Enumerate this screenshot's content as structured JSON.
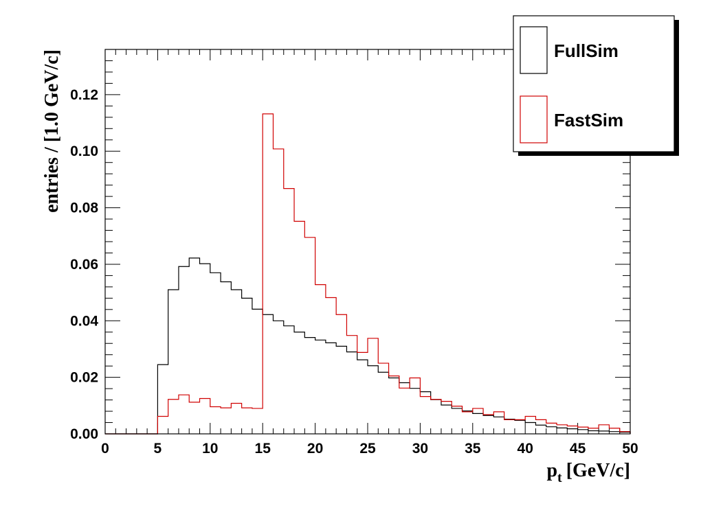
{
  "chart_data": {
    "type": "histogram",
    "title": "",
    "xlabel_main": "p",
    "xlabel_sub": "t",
    "xlabel_unit": "[GeV/c]",
    "ylabel": "entries / [1.0 GeV/c]",
    "xlim": [
      0,
      50
    ],
    "ylim": [
      0,
      0.136
    ],
    "grid": false,
    "legend_position": "top-right",
    "bin_width": 1.0,
    "x_ticks": [
      0,
      5,
      10,
      15,
      20,
      25,
      30,
      35,
      40,
      45,
      50
    ],
    "x_tick_labels": [
      "0",
      "5",
      "10",
      "15",
      "20",
      "25",
      "30",
      "35",
      "40",
      "45",
      "50"
    ],
    "y_ticks": [
      0,
      0.02,
      0.04,
      0.06,
      0.08,
      0.1,
      0.12
    ],
    "y_tick_labels": [
      "0.00",
      "0.02",
      "0.04",
      "0.06",
      "0.08",
      "0.10",
      "0.12"
    ],
    "series": [
      {
        "name": "FullSim",
        "color": "#000000",
        "values": [
          0,
          0,
          0,
          0,
          0,
          0.0245,
          0.051,
          0.0592,
          0.0622,
          0.0602,
          0.057,
          0.0538,
          0.051,
          0.048,
          0.0441,
          0.0422,
          0.04,
          0.0382,
          0.036,
          0.0341,
          0.0332,
          0.0322,
          0.031,
          0.029,
          0.0262,
          0.0241,
          0.0218,
          0.0198,
          0.0181,
          0.0161,
          0.0149,
          0.0121,
          0.0102,
          0.009,
          0.0081,
          0.0072,
          0.0065,
          0.006,
          0.0052,
          0.0048,
          0.004,
          0.0031,
          0.0025,
          0.0021,
          0.0018,
          0.0015,
          0.0011,
          0.001,
          0.0008,
          0.0006
        ]
      },
      {
        "name": "FastSim",
        "color": "#d00000",
        "values": [
          0,
          0,
          0,
          0,
          0,
          0.0062,
          0.0122,
          0.0138,
          0.0112,
          0.0125,
          0.0096,
          0.0092,
          0.0108,
          0.0092,
          0.009,
          0.1132,
          0.1008,
          0.0868,
          0.0752,
          0.0695,
          0.0528,
          0.0482,
          0.0422,
          0.0348,
          0.0288,
          0.0338,
          0.025,
          0.0205,
          0.0162,
          0.0198,
          0.0132,
          0.0122,
          0.0115,
          0.0098,
          0.0078,
          0.009,
          0.0068,
          0.0078,
          0.005,
          0.005,
          0.0062,
          0.005,
          0.0038,
          0.0032,
          0.0028,
          0.0024,
          0.002,
          0.0032,
          0.002,
          0.0008
        ]
      }
    ]
  }
}
